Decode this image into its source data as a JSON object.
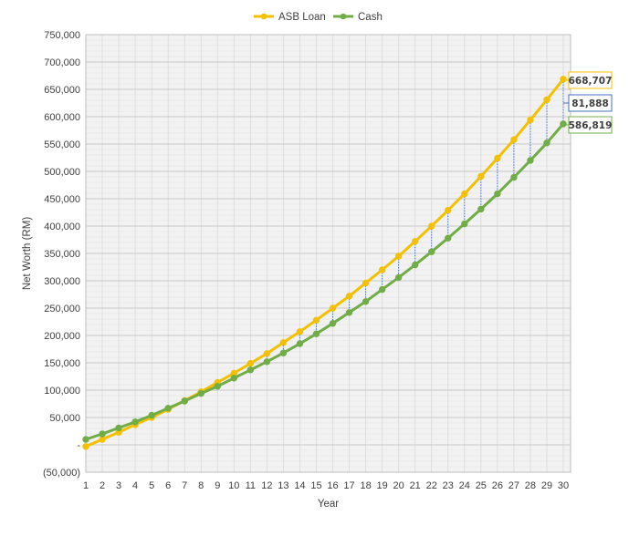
{
  "chart_data": {
    "type": "line",
    "title": "",
    "xlabel": "Year",
    "ylabel": "Net Worth (RM)",
    "ylim": [
      -50000,
      750000
    ],
    "ytick_values": [
      -50000,
      0,
      50000,
      100000,
      150000,
      200000,
      250000,
      300000,
      350000,
      400000,
      450000,
      500000,
      550000,
      600000,
      650000,
      700000,
      750000
    ],
    "ytick_labels": [
      "(50,000)",
      "-",
      "50,000",
      "100,000",
      "150,000",
      "200,000",
      "250,000",
      "300,000",
      "350,000",
      "400,000",
      "450,000",
      "500,000",
      "550,000",
      "600,000",
      "650,000",
      "700,000",
      "750,000"
    ],
    "x": [
      1,
      2,
      3,
      4,
      5,
      6,
      7,
      8,
      9,
      10,
      11,
      12,
      13,
      14,
      15,
      16,
      17,
      18,
      19,
      20,
      21,
      22,
      23,
      24,
      25,
      26,
      27,
      28,
      29,
      30
    ],
    "xtick_labels": [
      "1",
      "2",
      "3",
      "4",
      "5",
      "6",
      "7",
      "8",
      "9",
      "10",
      "11",
      "12",
      "13",
      "14",
      "15",
      "16",
      "17",
      "18",
      "19",
      "20",
      "21",
      "22",
      "23",
      "24",
      "25",
      "26",
      "27",
      "28",
      "29",
      "30"
    ],
    "grid": true,
    "legend_position": "top-center",
    "series": [
      {
        "name": "ASB Loan",
        "color": "#F5C000",
        "values": [
          -3000,
          10000,
          23000,
          37000,
          50000,
          65000,
          81000,
          97000,
          114000,
          131000,
          149000,
          167000,
          187000,
          207000,
          228000,
          250000,
          272000,
          296000,
          320000,
          345000,
          372000,
          400000,
          429000,
          459000,
          491000,
          524000,
          558000,
          594000,
          631000,
          668707
        ]
      },
      {
        "name": "Cash",
        "color": "#70AD47",
        "values": [
          10000,
          20000,
          31000,
          42000,
          54000,
          67000,
          80000,
          94000,
          107000,
          122000,
          137000,
          152000,
          168000,
          185000,
          203000,
          222000,
          242000,
          262000,
          284000,
          306000,
          329000,
          353000,
          378000,
          404000,
          431000,
          459000,
          489000,
          520000,
          552000,
          586819
        ]
      }
    ],
    "annotations": {
      "asb_end_label": "668,707",
      "gap_label": "81,888",
      "cash_end_label": "586,819",
      "gap_connector_color": "#4472C4"
    }
  }
}
